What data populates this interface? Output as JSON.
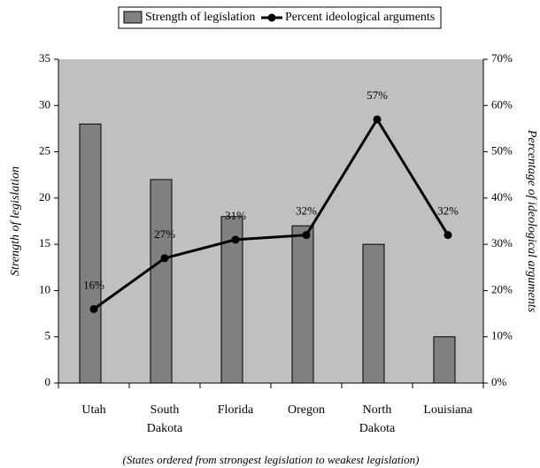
{
  "chart_data": {
    "type": "bar",
    "categories": [
      "Utah",
      "South Dakota",
      "Florida",
      "Oregon",
      "North Dakota",
      "Louisiana"
    ],
    "series": [
      {
        "name": "Strength of legislation",
        "type": "bar",
        "color": "#808080",
        "values": [
          28,
          22,
          18,
          17,
          15,
          5
        ]
      },
      {
        "name": "Percent ideological arguments",
        "type": "line",
        "axis": "y2",
        "color": "#000000",
        "values": [
          16,
          27,
          31,
          32,
          57,
          32
        ],
        "value_labels": [
          "16%",
          "27%",
          "31%",
          "32%",
          "57%",
          "32%"
        ]
      }
    ],
    "ylabel": "Strength of legislation",
    "y2label": "Percentage of ideological arguments",
    "xlabel": "(States ordered from strongest legislation to weakest legislation)",
    "ylim": [
      0,
      35
    ],
    "yticks": [
      0,
      5,
      10,
      15,
      20,
      25,
      30,
      35
    ],
    "y2lim": [
      0,
      70
    ],
    "y2ticks": [
      {
        "value": 0,
        "label": "0%"
      },
      {
        "value": 10,
        "label": "10%"
      },
      {
        "value": 20,
        "label": "20%"
      },
      {
        "value": 30,
        "label": "30%"
      },
      {
        "value": 40,
        "label": "40%"
      },
      {
        "value": 50,
        "label": "50%"
      },
      {
        "value": 60,
        "label": "60%"
      },
      {
        "value": 70,
        "label": "70%"
      }
    ],
    "plot_background": "#c0c0c0",
    "legend": "top"
  }
}
